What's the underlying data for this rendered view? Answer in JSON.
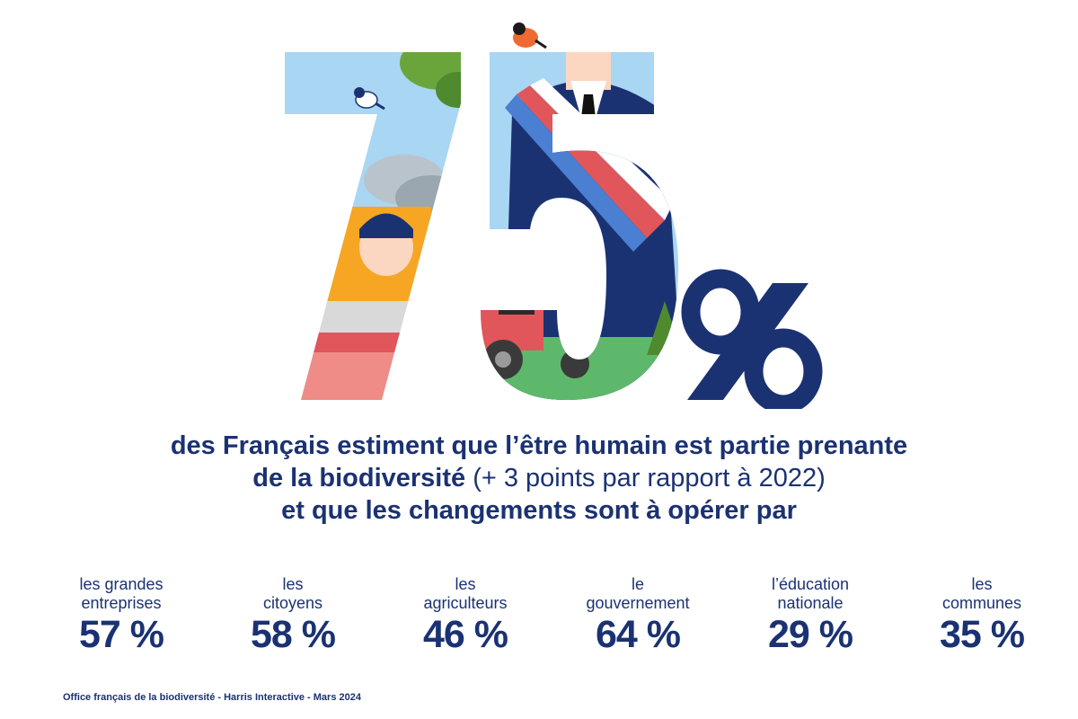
{
  "hero": {
    "digits": "75",
    "percent_sign": "%"
  },
  "headline": {
    "line1": "des Français estiment que l’être humain est partie prenante",
    "line2_bold": "de la biodiversité",
    "line2_light": " (+ 3 points par rapport à 2022)",
    "line3": "et que les changements sont à opérer par"
  },
  "stats": [
    {
      "label": "les grandes\nentreprises",
      "value": "57 %"
    },
    {
      "label": "les\ncitoyens",
      "value": "58 %"
    },
    {
      "label": "les\nagriculteurs",
      "value": "46 %"
    },
    {
      "label": "le\ngouvernement",
      "value": "64 %"
    },
    {
      "label": "l’éducation\nnationale",
      "value": "29 %"
    },
    {
      "label": "les\ncommunes",
      "value": "35 %"
    }
  ],
  "source": "Office français de la biodiversité - Harris Interactive - Mars 2024",
  "colors": {
    "navy": "#1b3272",
    "sky": "#a9d6f2",
    "orange": "#f6a623",
    "red": "#e0565b",
    "pink": "#ef8c87",
    "green": "#5eb86b"
  }
}
